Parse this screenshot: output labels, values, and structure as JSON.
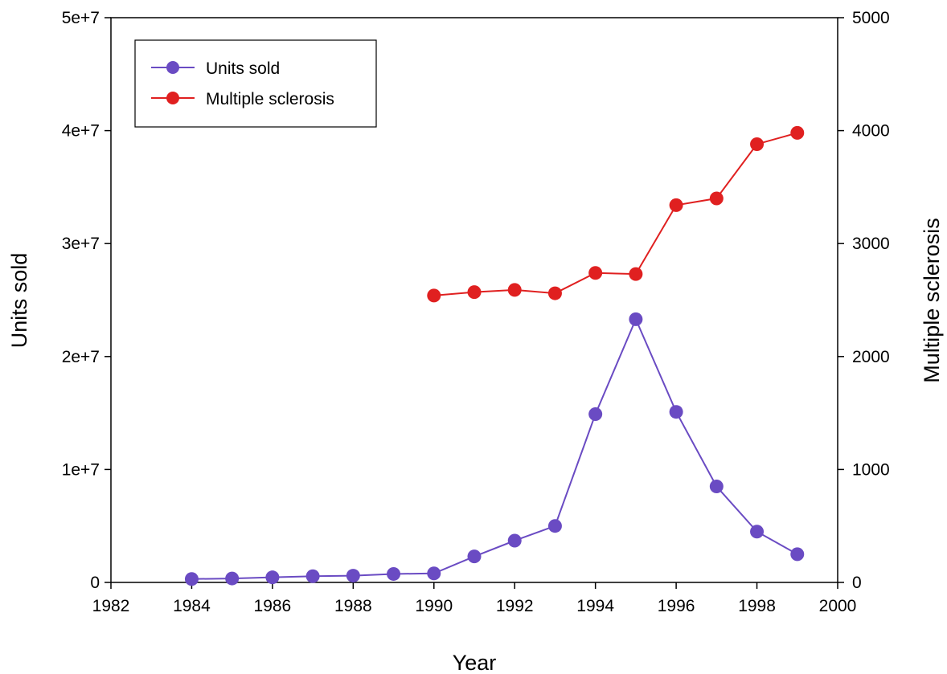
{
  "chart_data": {
    "type": "line",
    "title": "",
    "xlabel": "Year",
    "ylabel": "Units sold",
    "y2label": "Multiple sclerosis",
    "xlim": [
      1982,
      2000
    ],
    "ylim": [
      0,
      50000000
    ],
    "y2lim": [
      0,
      5000
    ],
    "x_ticks": [
      1982,
      1984,
      1986,
      1988,
      1990,
      1992,
      1994,
      1996,
      1998,
      2000
    ],
    "x_tick_labels": [
      "1982",
      "1984",
      "1986",
      "1988",
      "1990",
      "1992",
      "1994",
      "1996",
      "1998",
      "2000"
    ],
    "y_ticks": [
      0,
      10000000,
      20000000,
      30000000,
      40000000,
      50000000
    ],
    "y_tick_labels": [
      "0",
      "1e+7",
      "2e+7",
      "3e+7",
      "4e+7",
      "5e+7"
    ],
    "y2_ticks": [
      0,
      1000,
      2000,
      3000,
      4000,
      5000
    ],
    "y2_tick_labels": [
      "0",
      "1000",
      "2000",
      "3000",
      "4000",
      "5000"
    ],
    "grid": false,
    "legend_position": "top-left",
    "series": [
      {
        "name": "Units sold",
        "axis": "left",
        "color": "#6a4bc3",
        "x": [
          1984,
          1985,
          1986,
          1987,
          1988,
          1989,
          1990,
          1991,
          1992,
          1993,
          1994,
          1995,
          1996,
          1997,
          1998,
          1999
        ],
        "values": [
          300000,
          350000,
          450000,
          550000,
          600000,
          750000,
          800000,
          2300000,
          3700000,
          5000000,
          14900000,
          23300000,
          15100000,
          8500000,
          4500000,
          2500000
        ]
      },
      {
        "name": "Multiple sclerosis",
        "axis": "right",
        "color": "#e02020",
        "x": [
          1990,
          1991,
          1992,
          1993,
          1994,
          1995,
          1996,
          1997,
          1998,
          1999
        ],
        "values": [
          2540,
          2570,
          2590,
          2560,
          2740,
          2730,
          3340,
          3400,
          3880,
          3980
        ]
      }
    ]
  }
}
